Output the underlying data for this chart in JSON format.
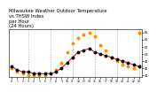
{
  "title": "Milwaukee Weather Outdoor Temperature\nvs THSW Index\nper Hour\n(24 Hours)",
  "title_fontsize": 3.8,
  "hours": [
    0,
    1,
    2,
    3,
    4,
    5,
    6,
    7,
    8,
    9,
    10,
    11,
    12,
    13,
    14,
    15,
    16,
    17,
    18,
    19,
    20,
    21,
    22,
    23
  ],
  "temp": [
    46,
    44,
    43,
    43,
    42,
    42,
    42,
    42,
    43,
    45,
    48,
    51,
    54,
    55,
    56,
    54,
    53,
    52,
    51,
    50,
    49,
    48,
    47,
    46
  ],
  "thsw": [
    45,
    43,
    42,
    41,
    41,
    41,
    41,
    42,
    44,
    48,
    54,
    59,
    62,
    64,
    65,
    63,
    58,
    55,
    51,
    49,
    47,
    46,
    45,
    65
  ],
  "temp_color": "#000000",
  "thsw_color": "#ff8c00",
  "line_color": "#cc0000",
  "grid_color": "#aaaaaa",
  "bg_color": "#ffffff",
  "ylim": [
    40,
    67
  ],
  "yticks": [
    41,
    45,
    49,
    53,
    57,
    61,
    65
  ],
  "ytick_labels": [
    "41",
    "45",
    "49",
    "53",
    "57",
    "61",
    "65"
  ],
  "vgrid_hours": [
    3,
    7,
    11,
    15,
    19,
    23
  ],
  "marker_size": 1.5,
  "line_width": 0.7,
  "dot_size": 1.8
}
